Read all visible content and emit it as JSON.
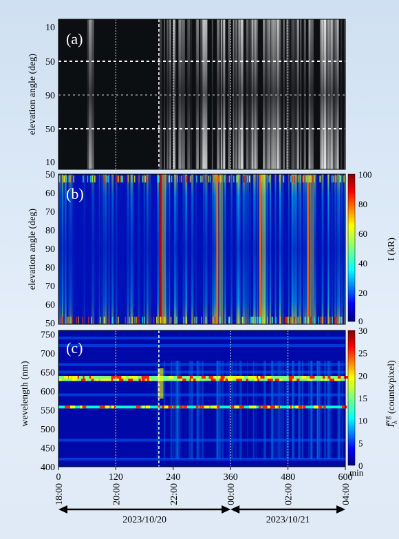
{
  "chart_data": [
    {
      "type": "heatmap",
      "panel_label": "(a)",
      "ylabel": "elevation angle (deg)",
      "yticks": [
        "10",
        "50",
        "90",
        "50",
        "10"
      ],
      "x_range_min": [
        0,
        600
      ],
      "colormap": "grayscale all-sky keogram",
      "bright_intervals_min": [
        [
          60,
          75
        ],
        [
          210,
          600
        ]
      ],
      "grid": "dashed lines at 50 deg and 90 deg; dotted vertical lines at 120, 240, 360, 480 min; dashed vertical line at 210 min"
    },
    {
      "type": "heatmap",
      "panel_label": "(b)",
      "ylabel": "elevation angle (deg)",
      "yticks": [
        "50",
        "60",
        "70",
        "80",
        "90",
        "80",
        "70",
        "60",
        "50"
      ],
      "x_range_min": [
        0,
        600
      ],
      "colorbar": {
        "label": "I (kR)",
        "range": [
          0,
          100
        ],
        "ticks": [
          "0",
          "20",
          "40",
          "60",
          "80",
          "100"
        ]
      },
      "colormap": "jet",
      "peak_intensity_times_min": [
        210,
        330,
        420,
        520
      ]
    },
    {
      "type": "heatmap",
      "panel_label": "(c)",
      "ylabel": "wevelength (nm)",
      "yrange": [
        400,
        760
      ],
      "yticks": [
        "400",
        "450",
        "500",
        "550",
        "600",
        "650",
        "700",
        "750"
      ],
      "x_range_min": [
        0,
        600
      ],
      "colorbar": {
        "label_main": "I",
        "label_sub": "λ",
        "label_sup": "avg",
        "label_rest": " (counts/pixel)",
        "range": [
          0,
          30
        ],
        "ticks": [
          "0",
          "5",
          "10",
          "15",
          "20",
          "25",
          "30"
        ]
      },
      "colormap": "jet",
      "emission_lines_nm": [
        557.7,
        630.0,
        636.4
      ],
      "weaker_bands_nm": [
        420,
        470,
        590,
        650,
        670,
        720,
        740
      ],
      "x_unit": "min",
      "xticks_min": [
        "0",
        "120",
        "240",
        "360",
        "480",
        "600"
      ],
      "xticks_time": [
        "18:00",
        "20:00",
        "22:00",
        "00:00",
        "02:00",
        "04:00"
      ],
      "date_spans": [
        {
          "label": "2023/10/20",
          "from_min": 0,
          "to_min": 360
        },
        {
          "label": "2023/10/21",
          "from_min": 360,
          "to_min": 600
        }
      ]
    }
  ]
}
